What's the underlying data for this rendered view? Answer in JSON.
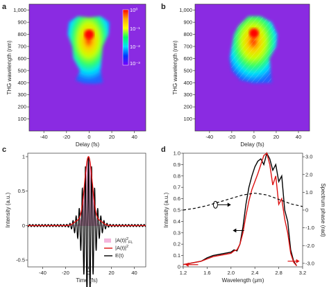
{
  "chart_data": [
    {
      "panel": "a",
      "type": "heatmap",
      "xlabel": "Delay (fs)",
      "ylabel": "THG wavelength (nm)",
      "xlim": [
        -53,
        50
      ],
      "ylim": [
        0,
        1050
      ],
      "xticks": [
        -40,
        -20,
        0,
        20,
        40
      ],
      "yticks": [
        100,
        200,
        300,
        400,
        500,
        600,
        700,
        800,
        900,
        1000
      ],
      "ytick_labels": [
        "100",
        "200",
        "300",
        "400",
        "500",
        "600",
        "700",
        "800",
        "900",
        "1,000"
      ],
      "colorbar": {
        "scale": "log",
        "range": [
          0.001,
          1
        ],
        "labels": [
          "10⁰",
          "10⁻¹",
          "10⁻²",
          "10⁻³"
        ],
        "colors": [
          "#ff0000",
          "#ffaa00",
          "#ffff00",
          "#00ff66",
          "#00ddff",
          "#0033ff",
          "#7a00ff"
        ]
      },
      "background_color": "#8a2be2",
      "peak": {
        "delay": 0,
        "wavelength": 800
      }
    },
    {
      "panel": "b",
      "type": "heatmap",
      "xlabel": "Delay (fs)",
      "ylabel": "THG wavelength (nm)",
      "xlim": [
        -53,
        50
      ],
      "ylim": [
        0,
        1050
      ],
      "xticks": [
        -40,
        -20,
        0,
        20,
        40
      ],
      "yticks": [
        100,
        200,
        300,
        400,
        500,
        600,
        700,
        800,
        900,
        1000
      ],
      "ytick_labels": [
        "100",
        "200",
        "300",
        "400",
        "500",
        "600",
        "700",
        "800",
        "900",
        "1,000"
      ],
      "background_color": "#8a2be2",
      "peak": {
        "delay": 0,
        "wavelength": 810
      }
    },
    {
      "panel": "c",
      "type": "line",
      "xlabel": "Time (fs)",
      "ylabel": "Intensity (a.u.)",
      "xlim": [
        -53,
        50
      ],
      "ylim": [
        -0.6,
        1.05
      ],
      "xticks": [
        -40,
        -20,
        0,
        20,
        40
      ],
      "yticks": [
        -0.5,
        0,
        0.5,
        1
      ],
      "ytick_labels": [
        "-0.5",
        "0",
        "0.5",
        "1"
      ],
      "series": [
        {
          "name": "|A(t)|²FL",
          "kind": "area",
          "color": "#f4b6dc",
          "fwhm_fs": 7,
          "peak": 1
        },
        {
          "name": "|A(t)|²",
          "kind": "line",
          "color": "#dd1111",
          "fwhm_fs": 8,
          "peak": 1
        },
        {
          "name": "E(t)",
          "kind": "line",
          "color": "#000000",
          "period_fs": 2.7,
          "envelope_width_fs": 16
        }
      ],
      "legend": {
        "placement": "bottom-right",
        "entries": [
          {
            "main": "|A(t)|",
            "sup": "2",
            "sub": "FL"
          },
          {
            "main": "|A(t)|",
            "sup": "2",
            "sub": ""
          },
          {
            "main": "E(t)",
            "sup": "",
            "sub": ""
          }
        ]
      }
    },
    {
      "panel": "d",
      "type": "line",
      "xlabel": "Wavelength (μm)",
      "ylabel": "Intensity (a.u.)",
      "ylabel_right": "Spectrum phase (rad)",
      "xlim": [
        1.2,
        3.2
      ],
      "ylim": [
        0,
        1.0
      ],
      "ylim_right": [
        -3.2,
        3.2
      ],
      "xticks": [
        1.2,
        1.6,
        2.0,
        2.4,
        2.8,
        3.2
      ],
      "yticks": [
        0,
        0.1,
        0.2,
        0.3,
        0.4,
        0.5,
        0.6,
        0.7,
        0.8,
        0.9,
        1.0
      ],
      "yticks_right": [
        -3,
        -2,
        -1,
        0,
        1,
        2,
        3
      ],
      "ytick_labels": [
        "0",
        "0.1",
        "0.2",
        "0.3",
        "0.4",
        "0.5",
        "0.6",
        "0.7",
        "0.8",
        "0.9",
        "1.0"
      ],
      "ytick_labels_right": [
        "-3.0",
        "-2.0",
        "-1.0",
        "0",
        "1.0",
        "2.0",
        "3.0"
      ],
      "series": [
        {
          "kind": "line",
          "color": "#000000",
          "x": [
            1.2,
            1.3,
            1.4,
            1.5,
            1.6,
            1.7,
            1.8,
            1.9,
            2.0,
            2.05,
            2.1,
            2.15,
            2.2,
            2.25,
            2.3,
            2.35,
            2.4,
            2.45,
            2.5,
            2.55,
            2.6,
            2.65,
            2.7,
            2.75,
            2.8,
            2.85,
            2.9,
            2.95,
            3.0,
            3.05,
            3.1
          ],
          "y": [
            0.02,
            0.03,
            0.04,
            0.05,
            0.08,
            0.1,
            0.11,
            0.12,
            0.13,
            0.15,
            0.14,
            0.2,
            0.35,
            0.55,
            0.7,
            0.8,
            0.88,
            0.93,
            0.95,
            0.9,
            1.0,
            0.95,
            0.85,
            0.9,
            0.75,
            0.8,
            0.5,
            0.4,
            0.15,
            0.05,
            0.01
          ]
        },
        {
          "kind": "line",
          "color": "#dd1111",
          "x": [
            1.2,
            1.3,
            1.4,
            1.5,
            1.6,
            1.7,
            1.8,
            1.9,
            2.0,
            2.05,
            2.1,
            2.15,
            2.2,
            2.25,
            2.3,
            2.35,
            2.4,
            2.45,
            2.5,
            2.55,
            2.6,
            2.65,
            2.7,
            2.75,
            2.8,
            2.85,
            2.9,
            2.95,
            3.0,
            3.05,
            3.1
          ],
          "y": [
            0.02,
            0.03,
            0.04,
            0.05,
            0.07,
            0.09,
            0.1,
            0.11,
            0.12,
            0.14,
            0.15,
            0.2,
            0.3,
            0.45,
            0.58,
            0.68,
            0.75,
            0.82,
            0.9,
            0.98,
            1.0,
            0.9,
            0.72,
            0.8,
            0.55,
            0.6,
            0.42,
            0.3,
            0.12,
            0.04,
            0.01
          ]
        },
        {
          "kind": "dashed",
          "color": "#000000",
          "axis": "right",
          "x": [
            1.2,
            1.4,
            1.6,
            1.8,
            2.0,
            2.2,
            2.4,
            2.5,
            2.6,
            2.8,
            3.0,
            3.2
          ],
          "y": [
            0.0,
            0.1,
            0.25,
            0.45,
            0.65,
            0.85,
            0.95,
            0.9,
            0.85,
            0.6,
            0.35,
            0.2
          ]
        }
      ]
    }
  ]
}
